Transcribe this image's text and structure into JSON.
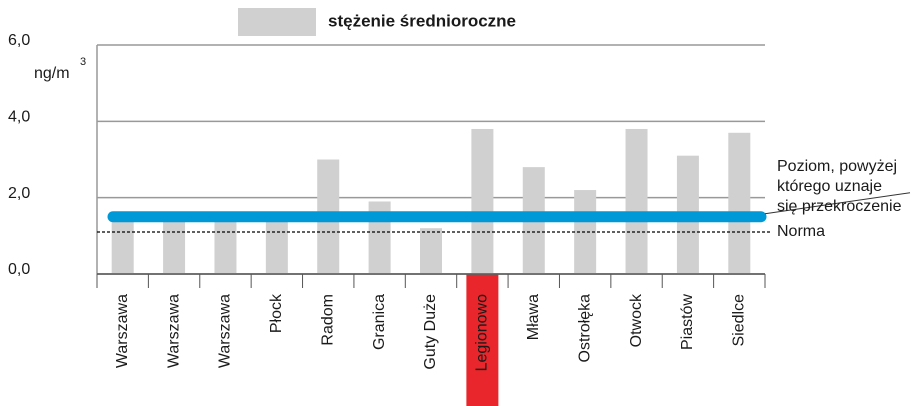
{
  "chart_data": {
    "type": "bar",
    "legend": "stężenie średnioroczne",
    "ylabel": "ng/m",
    "ylabel_superscript": "3",
    "categories": [
      "Warszawa",
      "Warszawa",
      "Warszawa",
      "Płock",
      "Radom",
      "Granica",
      "Guty Duże",
      "Legionowo",
      "Mława",
      "Ostrołęka",
      "Otwock",
      "Piastów",
      "Siedlce"
    ],
    "values": [
      1.4,
      1.4,
      1.4,
      1.4,
      3.0,
      1.9,
      1.2,
      3.8,
      2.8,
      2.2,
      3.8,
      3.1,
      3.7
    ],
    "color": "#d0d0d0",
    "ylim": [
      0,
      6
    ],
    "yticks": [
      {
        "value": 0,
        "label": "0,0"
      },
      {
        "value": 2,
        "label": "2,0"
      },
      {
        "value": 4,
        "label": "4,0"
      },
      {
        "value": 6,
        "label": "6,0"
      }
    ],
    "grid": true,
    "highlight": {
      "category": "Legionowo",
      "color": "#e8262b"
    },
    "reference_lines": [
      {
        "label_lines": [
          "Poziom, powyżej",
          "którego uznaje",
          "się przekroczenie"
        ],
        "value": 1.5,
        "color": "#0099d8",
        "style": "solid"
      },
      {
        "label_lines": [
          "Norma"
        ],
        "value": 1.1,
        "color": "#000000",
        "style": "dashed"
      }
    ]
  }
}
